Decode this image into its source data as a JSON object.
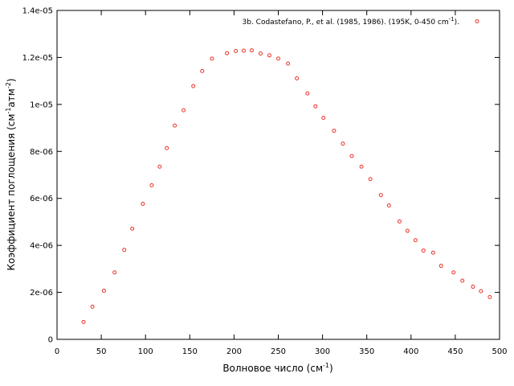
{
  "chart_data": {
    "type": "scatter",
    "xlabel": "Волновое число (см",
    "xlabel_sup": "-1",
    "xlabel_suffix": ")",
    "ylabel": "Коэффициент поглощения (см",
    "ylabel_sup1": "-1",
    "ylabel_mid": "атм",
    "ylabel_sup2": "-2",
    "ylabel_suffix": ")",
    "xlim": [
      0,
      500
    ],
    "ylim": [
      0,
      1.4e-05
    ],
    "x_ticks": [
      0,
      50,
      100,
      150,
      200,
      250,
      300,
      350,
      400,
      450,
      500
    ],
    "x_tick_labels": [
      "0",
      "50",
      "100",
      "150",
      "200",
      "250",
      "300",
      "350",
      "400",
      "450",
      "500"
    ],
    "y_ticks": [
      0,
      2e-06,
      4e-06,
      6e-06,
      8e-06,
      1e-05,
      1.2e-05,
      1.4e-05
    ],
    "y_tick_labels": [
      "0",
      "2e-06",
      "4e-06",
      "6e-06",
      "8e-06",
      "1e-05",
      "1.2e-05",
      "1.4e-05"
    ],
    "grid": false,
    "legend_position": "top-right",
    "series": [
      {
        "name": "3b. Codastefano, P., et al. (1985, 1986). (195K, 0-450 cm",
        "name_sup": "-1",
        "name_suffix": ").",
        "color": "#e8322a",
        "marker": "circle-open",
        "x": [
          30,
          40,
          53,
          65,
          76,
          85,
          97,
          107,
          116,
          124,
          133,
          143,
          154,
          164,
          175,
          192,
          202,
          211,
          220,
          230,
          240,
          250,
          261,
          271,
          283,
          292,
          301,
          313,
          323,
          333,
          344,
          354,
          366,
          375,
          387,
          396,
          405,
          414,
          425,
          434,
          448,
          458,
          470,
          479,
          489
        ],
        "y": [
          7.4e-07,
          1.39e-06,
          2.07e-06,
          2.85e-06,
          3.81e-06,
          4.71e-06,
          5.77e-06,
          6.56e-06,
          7.35e-06,
          8.14e-06,
          9.1e-06,
          9.75e-06,
          1.078e-05,
          1.142e-05,
          1.195e-05,
          1.218e-05,
          1.227e-05,
          1.229e-05,
          1.23e-05,
          1.217e-05,
          1.209e-05,
          1.195e-05,
          1.174e-05,
          1.111e-05,
          1.047e-05,
          9.92e-06,
          9.43e-06,
          8.88e-06,
          8.33e-06,
          7.8e-06,
          7.35e-06,
          6.82e-06,
          6.14e-06,
          5.7e-06,
          5.02e-06,
          4.62e-06,
          4.22e-06,
          3.78e-06,
          3.69e-06,
          3.13e-06,
          2.85e-06,
          2.5e-06,
          2.24e-06,
          2.05e-06,
          1.8e-06
        ]
      }
    ]
  }
}
